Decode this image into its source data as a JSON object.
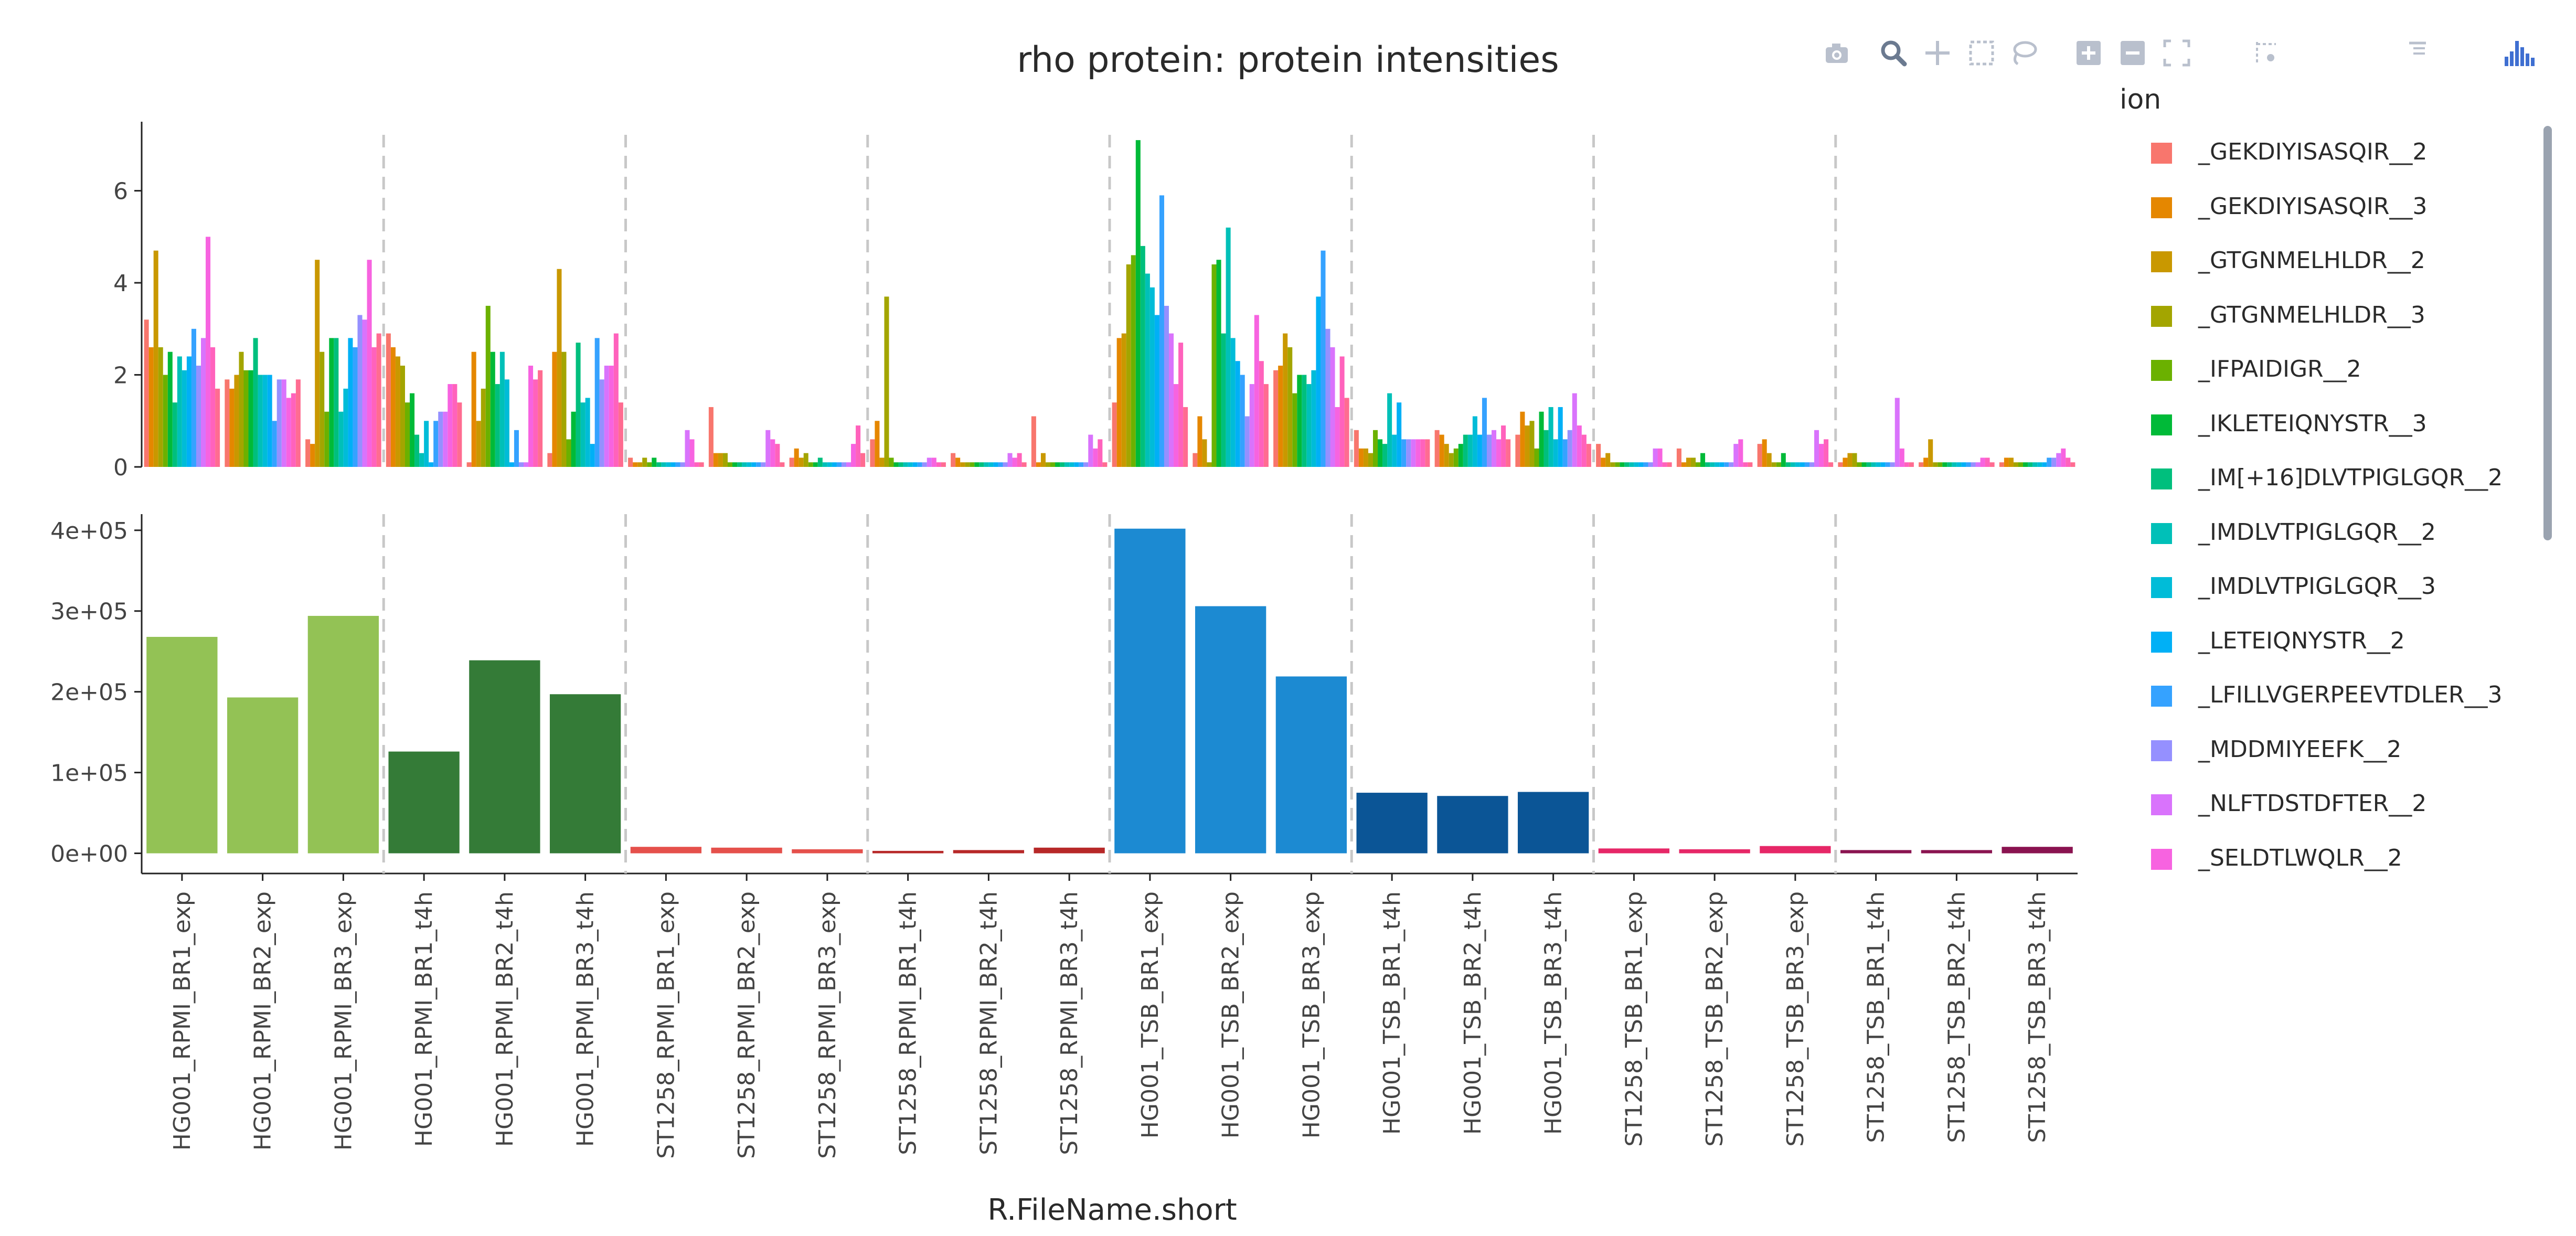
{
  "chart_data": {
    "type": "bar",
    "title": "rho protein: protein intensities",
    "xlabel": "R.FileName.short",
    "categories": [
      "HG001_RPMI_BR1_exp",
      "HG001_RPMI_BR2_exp",
      "HG001_RPMI_BR3_exp",
      "HG001_RPMI_BR1_t4h",
      "HG001_RPMI_BR2_t4h",
      "HG001_RPMI_BR3_t4h",
      "ST1258_RPMI_BR1_exp",
      "ST1258_RPMI_BR2_exp",
      "ST1258_RPMI_BR3_exp",
      "ST1258_RPMI_BR1_t4h",
      "ST1258_RPMI_BR2_t4h",
      "ST1258_RPMI_BR3_t4h",
      "HG001_TSB_BR1_exp",
      "HG001_TSB_BR2_exp",
      "HG001_TSB_BR3_exp",
      "HG001_TSB_BR1_t4h",
      "HG001_TSB_BR2_t4h",
      "HG001_TSB_BR3_t4h",
      "ST1258_TSB_BR1_exp",
      "ST1258_TSB_BR2_exp",
      "ST1258_TSB_BR3_exp",
      "ST1258_TSB_BR1_t4h",
      "ST1258_TSB_BR2_t4h",
      "ST1258_TSB_BR3_t4h"
    ],
    "legend": {
      "title": "ion",
      "placement": "right"
    },
    "top_panel": {
      "ylim": [
        0,
        7.5
      ],
      "yticks": [
        "0",
        "2",
        "4",
        "6"
      ],
      "ytick_values": [
        0,
        2,
        4,
        6
      ],
      "series": [
        {
          "name": "_GEKDIYISASQIR__2",
          "color": "#f8766d",
          "values": [
            3.2,
            1.9,
            0.6,
            2.9,
            0.1,
            0.3,
            0.2,
            1.3,
            0.2,
            0.6,
            0.3,
            1.1,
            1.4,
            0.3,
            2.1,
            0.8,
            0.8,
            0.7,
            0.5,
            0.4,
            0.5,
            0.1,
            0.1,
            0.1
          ]
        },
        {
          "name": "_GEKDIYISASQIR__3",
          "color": "#e58700",
          "values": [
            2.6,
            1.7,
            0.5,
            2.6,
            2.5,
            2.5,
            0.1,
            0.3,
            0.4,
            1.0,
            0.2,
            0.1,
            2.8,
            1.1,
            2.2,
            0.4,
            0.7,
            1.2,
            0.2,
            0.1,
            0.6,
            0.2,
            0.2,
            0.2
          ]
        },
        {
          "name": "_GTGNMELHLDR__2",
          "color": "#c99800",
          "values": [
            4.7,
            2.0,
            4.5,
            2.4,
            1.0,
            4.3,
            0.1,
            0.3,
            0.2,
            0.2,
            0.1,
            0.3,
            2.9,
            0.6,
            2.9,
            0.4,
            0.5,
            0.9,
            0.3,
            0.2,
            0.3,
            0.3,
            0.6,
            0.2
          ]
        },
        {
          "name": "_GTGNMELHLDR__3",
          "color": "#a3a500",
          "values": [
            2.6,
            2.5,
            2.5,
            2.2,
            1.7,
            2.5,
            0.2,
            0.3,
            0.3,
            3.7,
            0.1,
            0.1,
            4.4,
            0.1,
            2.6,
            0.3,
            0.3,
            1.0,
            0.1,
            0.2,
            0.1,
            0.3,
            0.1,
            0.1
          ]
        },
        {
          "name": "_IFPAIDIGR__2",
          "color": "#6bb100",
          "values": [
            2.0,
            2.1,
            1.2,
            1.4,
            3.5,
            0.6,
            0.1,
            0.1,
            0.1,
            0.2,
            0.1,
            0.1,
            4.6,
            4.4,
            1.6,
            0.8,
            0.4,
            0.4,
            0.1,
            0.1,
            0.1,
            0.1,
            0.1,
            0.1
          ]
        },
        {
          "name": "_IKLETEIQNYSTR__3",
          "color": "#00ba38",
          "values": [
            2.5,
            2.1,
            2.8,
            1.6,
            2.5,
            1.2,
            0.2,
            0.1,
            0.1,
            0.1,
            0.1,
            0.1,
            7.1,
            4.5,
            2.0,
            0.6,
            0.5,
            1.2,
            0.1,
            0.3,
            0.3,
            0.1,
            0.1,
            0.1
          ]
        },
        {
          "name": "_IM[+16]DLVTPIGLGQR__2",
          "color": "#00bf7d",
          "values": [
            1.4,
            2.8,
            2.8,
            0.7,
            1.8,
            2.7,
            0.1,
            0.1,
            0.2,
            0.1,
            0.1,
            0.1,
            4.8,
            2.9,
            2.0,
            0.5,
            0.7,
            0.8,
            0.1,
            0.1,
            0.1,
            0.1,
            0.1,
            0.1
          ]
        },
        {
          "name": "_IMDLVTPIGLGQR__2",
          "color": "#00c0b8",
          "values": [
            2.4,
            2.0,
            1.2,
            0.3,
            2.5,
            1.4,
            0.1,
            0.1,
            0.1,
            0.1,
            0.1,
            0.1,
            4.2,
            5.2,
            1.8,
            1.6,
            0.7,
            1.3,
            0.1,
            0.1,
            0.1,
            0.1,
            0.1,
            0.1
          ]
        },
        {
          "name": "_IMDLVTPIGLGQR__3",
          "color": "#00bcd8",
          "values": [
            2.1,
            2.0,
            1.7,
            1.0,
            1.9,
            1.5,
            0.1,
            0.1,
            0.1,
            0.1,
            0.1,
            0.1,
            3.9,
            2.8,
            2.1,
            0.7,
            1.1,
            0.6,
            0.1,
            0.1,
            0.1,
            0.1,
            0.1,
            0.1
          ]
        },
        {
          "name": "_LETEIQNYSTR__2",
          "color": "#00b0f6",
          "values": [
            2.4,
            2.0,
            2.8,
            0.1,
            0.1,
            0.5,
            0.1,
            0.1,
            0.1,
            0.1,
            0.1,
            0.1,
            3.3,
            2.3,
            3.7,
            1.4,
            0.7,
            1.3,
            0.1,
            0.1,
            0.1,
            0.1,
            0.1,
            0.1
          ]
        },
        {
          "name": "_LFILLVGERPEEVTDLER__3",
          "color": "#35a2ff",
          "values": [
            3.0,
            1.0,
            2.6,
            1.0,
            0.8,
            2.8,
            0.1,
            0.1,
            0.1,
            0.1,
            0.1,
            0.1,
            5.9,
            2.0,
            4.7,
            0.6,
            1.5,
            0.6,
            0.1,
            0.1,
            0.1,
            0.1,
            0.1,
            0.2
          ]
        },
        {
          "name": "_MDDMIYEEFK__2",
          "color": "#9590ff",
          "values": [
            2.2,
            1.9,
            3.3,
            1.2,
            0.1,
            1.9,
            0.1,
            0.1,
            0.1,
            0.1,
            0.1,
            0.1,
            3.5,
            1.1,
            3.0,
            0.6,
            0.7,
            0.8,
            0.1,
            0.1,
            0.1,
            0.1,
            0.1,
            0.2
          ]
        },
        {
          "name": "_NLFTDSTDFTER__2",
          "color": "#d973fc",
          "values": [
            2.8,
            1.9,
            3.2,
            1.2,
            0.1,
            2.2,
            0.8,
            0.8,
            0.1,
            0.2,
            0.3,
            0.7,
            2.9,
            1.8,
            2.6,
            0.6,
            0.8,
            1.6,
            0.4,
            0.5,
            0.8,
            1.5,
            0.1,
            0.3
          ]
        },
        {
          "name": "_SELDTLWQLR__2",
          "color": "#f763e0",
          "values": [
            5.0,
            1.5,
            4.5,
            1.8,
            2.2,
            2.2,
            0.6,
            0.6,
            0.5,
            0.2,
            0.2,
            0.4,
            1.8,
            3.3,
            1.3,
            0.6,
            0.6,
            0.9,
            0.4,
            0.6,
            0.5,
            0.4,
            0.2,
            0.4
          ]
        },
        {
          "name": "",
          "color": "#ff62bc",
          "values": [
            2.6,
            1.6,
            2.6,
            1.8,
            1.9,
            2.9,
            0.1,
            0.5,
            0.9,
            0.1,
            0.3,
            0.6,
            2.7,
            2.3,
            2.4,
            0.6,
            0.9,
            0.7,
            0.1,
            0.1,
            0.6,
            0.1,
            0.2,
            0.2
          ]
        },
        {
          "name": "",
          "color": "#ff6c91",
          "values": [
            1.7,
            1.9,
            2.9,
            1.4,
            2.1,
            1.4,
            0.1,
            0.1,
            0.3,
            0.1,
            0.1,
            0.1,
            1.3,
            1.8,
            1.5,
            0.6,
            0.6,
            0.5,
            0.1,
            0.1,
            0.1,
            0.1,
            0.1,
            0.1
          ]
        }
      ]
    },
    "bottom_panel": {
      "ylim": [
        -25000.0,
        420000.0
      ],
      "yticks": [
        "0e+00",
        "1e+05",
        "2e+05",
        "3e+05",
        "4e+05"
      ],
      "ytick_values": [
        0,
        100000,
        200000,
        300000,
        400000
      ],
      "values": [
        268000,
        193000,
        294000,
        126000,
        239000,
        197000,
        8000,
        7000,
        5000,
        3000,
        4000,
        7000,
        402000,
        306000,
        219000,
        75000,
        71000,
        76000,
        6000,
        5000,
        9000,
        4000,
        4000,
        8000
      ],
      "colors": [
        "#93c255",
        "#93c255",
        "#93c255",
        "#347b37",
        "#347b37",
        "#347b37",
        "#e5504b",
        "#e5504b",
        "#e5504b",
        "#b72828",
        "#b72828",
        "#b72828",
        "#1c8ad2",
        "#1c8ad2",
        "#1c8ad2",
        "#0b5596",
        "#0b5596",
        "#0b5596",
        "#e62767",
        "#e62767",
        "#e62767",
        "#8a1350",
        "#8a1350",
        "#8a1350"
      ]
    }
  },
  "toolbar": {
    "icons": [
      "camera-icon",
      "zoom-icon",
      "pan-icon",
      "box-select-icon",
      "lasso-select-icon",
      "zoom-in-icon",
      "zoom-out-icon",
      "autoscale-icon",
      "reset-axes-icon",
      "spike-lines-icon",
      "hover-closest-icon",
      "hover-compare-icon",
      "toggle-hover-icon",
      "plotly-logo-icon"
    ],
    "color": "#b9c0cd",
    "active_color": "#6b7a90",
    "logo_color": "#3f6fd1"
  }
}
